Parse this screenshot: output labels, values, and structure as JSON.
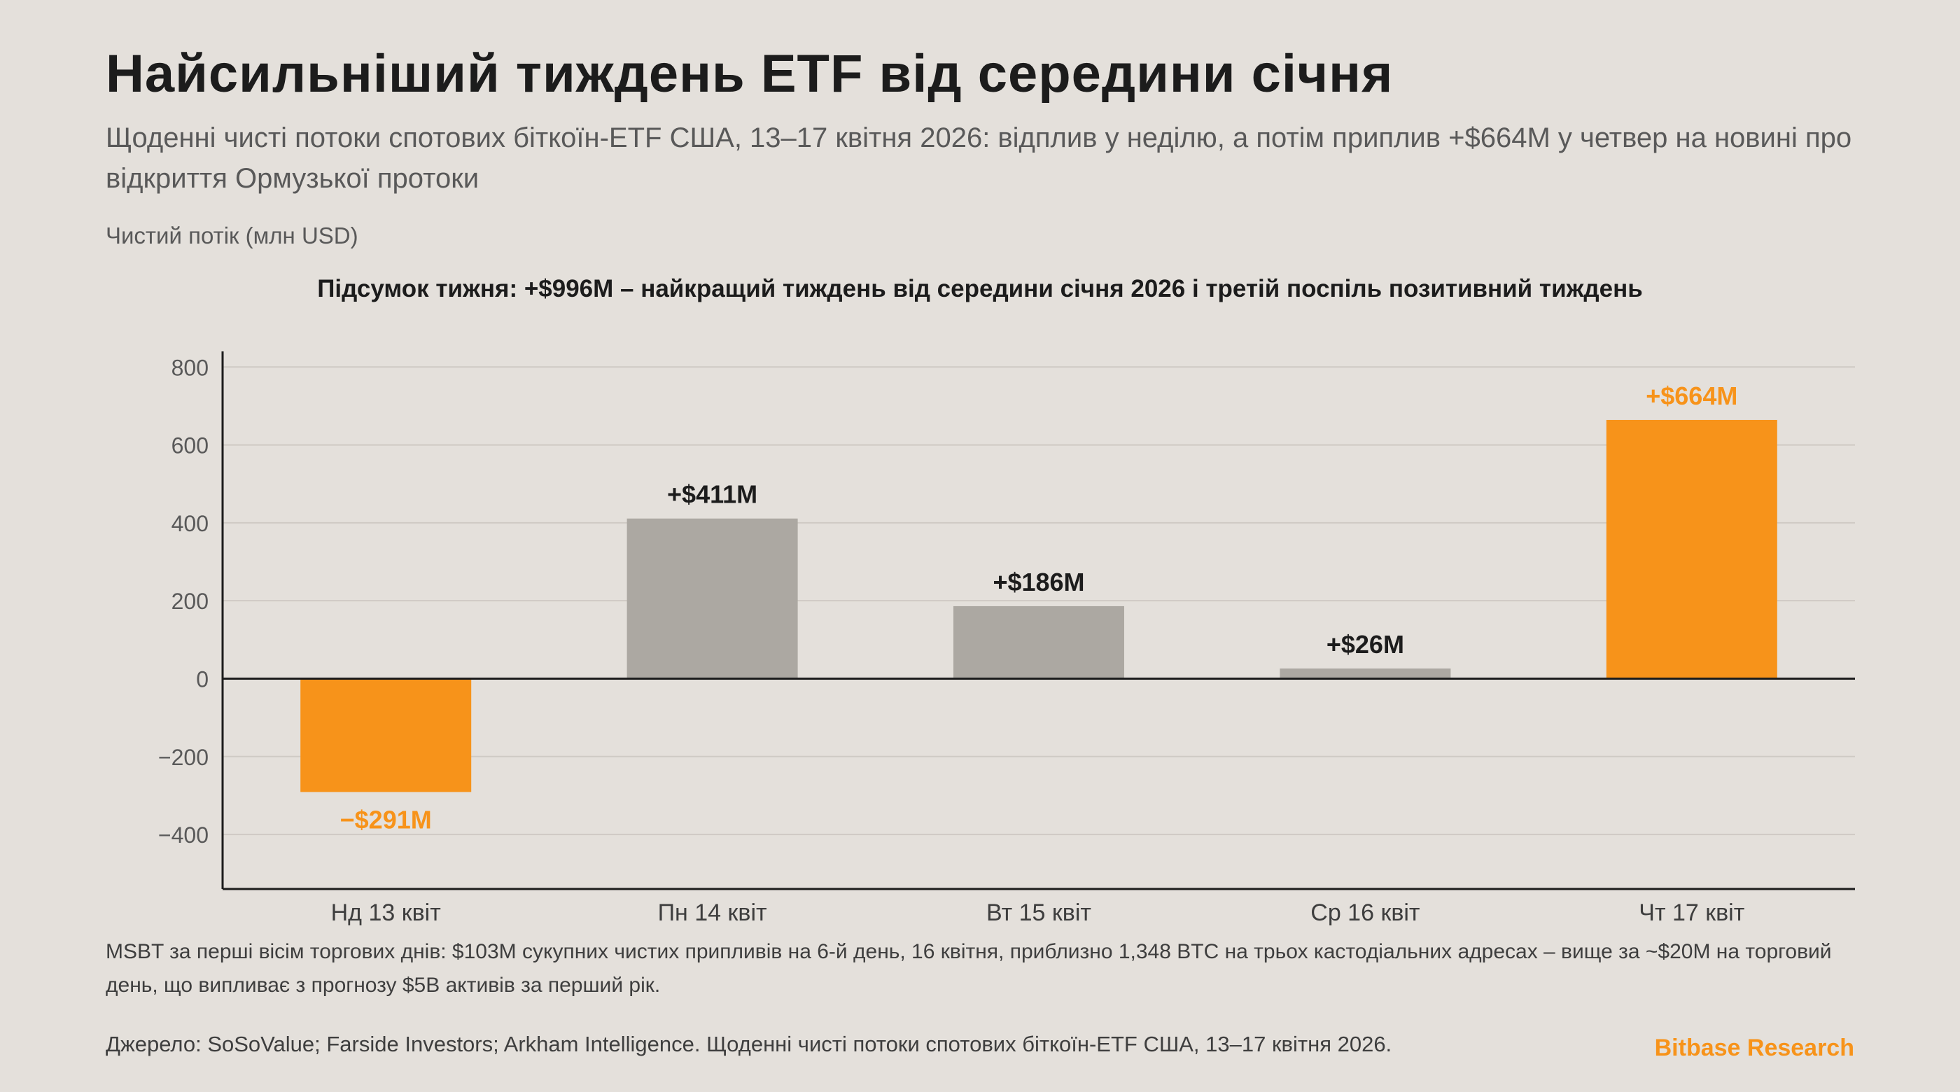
{
  "header": {
    "title": "Найсильніший тиждень ETF від середини січня",
    "subtitle": "Щоденні чисті потоки спотових біткоїн-ETF США, 13–17 квітня 2026: відплив у неділю, а потім приплив +$664M у четвер на новині про відкриття Ормузької протоки",
    "ylabel": "Чистий потік (млн USD)"
  },
  "summary": "Підсумок тижня: +$996M – найкращий тиждень від середини січня 2026 і третій поспіль позитивний тиждень",
  "colors": {
    "accent": "#f7931a",
    "neutral_bar": "#aca8a2",
    "background": "#e4e0db",
    "text": "#1c1c1c"
  },
  "chart_data": {
    "type": "bar",
    "categories": [
      "Нд 13 квіт",
      "Пн 14 квіт",
      "Вт 15 квіт",
      "Ср 16 квіт",
      "Чт 17 квіт"
    ],
    "values": [
      -291,
      411,
      186,
      26,
      664
    ],
    "data_labels": [
      "−$291M",
      "+$411M",
      "+$186M",
      "+$26M",
      "+$664M"
    ],
    "highlight": [
      true,
      false,
      false,
      false,
      true
    ],
    "ylim": [
      -540,
      840
    ],
    "yticks": [
      -400,
      -200,
      0,
      200,
      400,
      600,
      800
    ],
    "ytick_labels": [
      "−400",
      "−200",
      "0",
      "200",
      "400",
      "600",
      "800"
    ],
    "grid": true,
    "ylabel": "Чистий потік (млн USD)"
  },
  "footer": {
    "note": "MSBT за перші вісім торгових днів: $103M сукупних чистих припливів на 6-й день, 16 квітня, приблизно 1,348 BTC на трьох кастодіальних адресах – вище за ~$20M на торговий день, що випливає з прогнозу $5B активів за перший рік.",
    "source": "Джерело: SoSoValue; Farside Investors; Arkham Intelligence. Щоденні чисті потоки спотових біткоїн-ETF США, 13–17 квітня 2026.",
    "brand": "Bitbase Research"
  }
}
